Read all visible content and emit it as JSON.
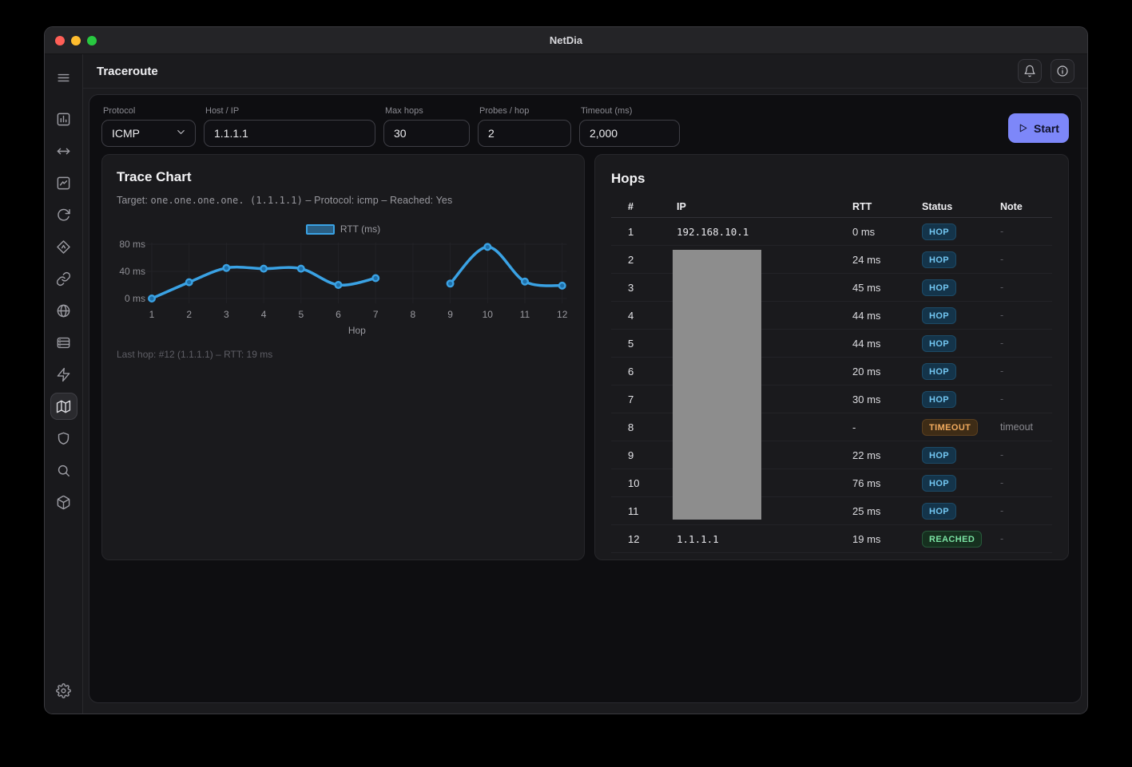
{
  "window": {
    "title": "NetDia"
  },
  "header": {
    "title": "Traceroute"
  },
  "sidebar": {
    "menu_icon": "menu",
    "items": [
      {
        "id": "bar-chart",
        "icon": "bar-chart",
        "active": false
      },
      {
        "id": "arrows-horizontal",
        "icon": "arrows-horizontal",
        "active": false
      },
      {
        "id": "line-chart",
        "icon": "line-chart",
        "active": false
      },
      {
        "id": "refresh",
        "icon": "refresh",
        "active": false
      },
      {
        "id": "diamond-route",
        "icon": "diamond-route",
        "active": false
      },
      {
        "id": "link",
        "icon": "link",
        "active": false
      },
      {
        "id": "globe",
        "icon": "globe",
        "active": false
      },
      {
        "id": "server",
        "icon": "server",
        "active": false
      },
      {
        "id": "zap",
        "icon": "zap",
        "active": false
      },
      {
        "id": "map",
        "icon": "map",
        "active": true
      },
      {
        "id": "shield",
        "icon": "shield",
        "active": false
      },
      {
        "id": "search",
        "icon": "search",
        "active": false
      },
      {
        "id": "cube",
        "icon": "cube",
        "active": false
      }
    ],
    "settings_icon": "gear"
  },
  "form": {
    "fields": [
      {
        "label": "Protocol",
        "value": "ICMP",
        "type": "select"
      },
      {
        "label": "Host / IP",
        "value": "1.1.1.1",
        "type": "text"
      },
      {
        "label": "Max hops",
        "value": "30",
        "type": "text"
      },
      {
        "label": "Probes / hop",
        "value": "2",
        "type": "text"
      },
      {
        "label": "Timeout (ms)",
        "value": "2,000",
        "type": "text"
      }
    ],
    "start_label": "Start"
  },
  "trace_chart": {
    "title": "Trace Chart",
    "subtitle": {
      "prefix": "Target: ",
      "target_mono": "one.one.one.one. (1.1.1.1)",
      "suffix": " – Protocol: icmp – Reached: Yes"
    },
    "footer": "Last hop: #12 (1.1.1.1) – RTT: 19 ms"
  },
  "chart_data": {
    "type": "line",
    "title": "Trace Chart",
    "x": [
      1,
      2,
      3,
      4,
      5,
      6,
      7,
      8,
      9,
      10,
      11,
      12
    ],
    "series": [
      {
        "name": "RTT (ms)",
        "values": [
          0,
          24,
          45,
          44,
          44,
          20,
          30,
          null,
          22,
          76,
          25,
          19
        ]
      }
    ],
    "xlabel": "Hop",
    "ylabel": "",
    "ylim": [
      0,
      80
    ],
    "yticks": [
      0,
      40,
      80
    ],
    "ytick_labels": [
      "0 ms",
      "40 ms",
      "80 ms"
    ],
    "grid": true,
    "legend_position": "top",
    "line_color": "#3aa2e4",
    "gap_at_x": 8
  },
  "hops_table": {
    "title": "Hops",
    "columns": [
      "#",
      "IP",
      "RTT",
      "Status",
      "Note"
    ],
    "rows": [
      {
        "hop": "1",
        "ip": "192.168.10.1",
        "redacted": false,
        "rtt": "0 ms",
        "status": "HOP",
        "note": "-"
      },
      {
        "hop": "2",
        "ip": "",
        "redacted": true,
        "rtt": "24 ms",
        "status": "HOP",
        "note": "-"
      },
      {
        "hop": "3",
        "ip": "",
        "redacted": true,
        "rtt": "45 ms",
        "status": "HOP",
        "note": "-"
      },
      {
        "hop": "4",
        "ip": "",
        "redacted": true,
        "rtt": "44 ms",
        "status": "HOP",
        "note": "-"
      },
      {
        "hop": "5",
        "ip": "",
        "redacted": true,
        "rtt": "44 ms",
        "status": "HOP",
        "note": "-"
      },
      {
        "hop": "6",
        "ip": "",
        "redacted": true,
        "rtt": "20 ms",
        "status": "HOP",
        "note": "-"
      },
      {
        "hop": "7",
        "ip": "",
        "redacted": true,
        "rtt": "30 ms",
        "status": "HOP",
        "note": "-"
      },
      {
        "hop": "8",
        "ip": "",
        "redacted": true,
        "rtt": "-",
        "status": "TIMEOUT",
        "note": "timeout"
      },
      {
        "hop": "9",
        "ip": "",
        "redacted": true,
        "rtt": "22 ms",
        "status": "HOP",
        "note": "-"
      },
      {
        "hop": "10",
        "ip": "",
        "redacted": true,
        "rtt": "76 ms",
        "status": "HOP",
        "note": "-"
      },
      {
        "hop": "11",
        "ip": "",
        "redacted": true,
        "rtt": "25 ms",
        "status": "HOP",
        "note": "-"
      },
      {
        "hop": "12",
        "ip": "1.1.1.1",
        "redacted": false,
        "rtt": "19 ms",
        "status": "REACHED",
        "note": "-"
      }
    ]
  },
  "colors": {
    "accent_start_button": "#7d87f9",
    "chart_line": "#3aa2e4",
    "badge_hop_bg": "#14344a",
    "badge_hop_text": "#72c6f1",
    "badge_timeout_bg": "#3e2c16",
    "badge_timeout_text": "#f2ab5e",
    "badge_reached_bg": "#16301f",
    "badge_reached_text": "#7be3a3",
    "traffic_red": "#ff5f57",
    "traffic_yellow": "#febc2e",
    "traffic_green": "#28c840",
    "redaction_gray": "#8d8d8d"
  }
}
